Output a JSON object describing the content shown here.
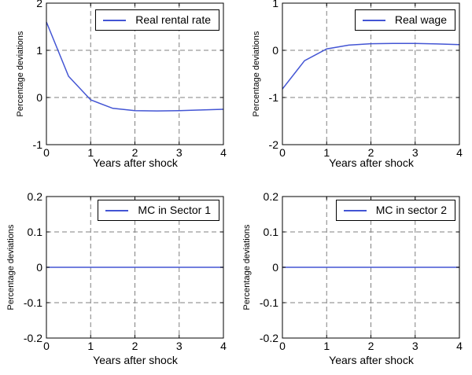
{
  "figure": {
    "background": "#ffffff",
    "grid_color": "#808080",
    "axis_color": "#000000"
  },
  "chart_data": [
    {
      "type": "line",
      "legend": "Real rental rate",
      "xlabel": "Years after shock",
      "ylabel": "Percentage deviations",
      "xlim": [
        0,
        4
      ],
      "ylim": [
        -1,
        2
      ],
      "xticks": [
        0,
        1,
        2,
        3,
        4
      ],
      "yticks": [
        -1,
        0,
        1,
        2
      ],
      "grid": true,
      "legend_position": "top-right",
      "line_color": "#4355d4",
      "x": [
        0,
        0.5,
        1,
        1.5,
        2,
        2.5,
        3,
        3.5,
        4
      ],
      "y": [
        1.6,
        0.45,
        -0.05,
        -0.23,
        -0.28,
        -0.285,
        -0.28,
        -0.265,
        -0.25
      ]
    },
    {
      "type": "line",
      "legend": "Real wage",
      "xlabel": "Years after shock",
      "ylabel": "Percentage deviations",
      "xlim": [
        0,
        4
      ],
      "ylim": [
        -2,
        1
      ],
      "xticks": [
        0,
        1,
        2,
        3,
        4
      ],
      "yticks": [
        -2,
        -1,
        0,
        1
      ],
      "grid": true,
      "legend_position": "top-right",
      "line_color": "#4355d4",
      "x": [
        0,
        0.5,
        1,
        1.5,
        2,
        2.5,
        3,
        3.5,
        4
      ],
      "y": [
        -0.82,
        -0.22,
        0.03,
        0.11,
        0.14,
        0.145,
        0.145,
        0.135,
        0.12
      ]
    },
    {
      "type": "line",
      "legend": "MC in Sector 1",
      "xlabel": "Years after shock",
      "ylabel": "Percentage deviations",
      "xlim": [
        0,
        4
      ],
      "ylim": [
        -0.2,
        0.2
      ],
      "xticks": [
        0,
        1,
        2,
        3,
        4
      ],
      "yticks": [
        -0.2,
        -0.1,
        0,
        0.1,
        0.2
      ],
      "grid": true,
      "legend_position": "top-right",
      "line_color": "#4355d4",
      "x": [
        0,
        0.5,
        1,
        1.5,
        2,
        2.5,
        3,
        3.5,
        4
      ],
      "y": [
        0,
        0,
        0,
        0,
        0,
        0,
        0,
        0,
        0
      ]
    },
    {
      "type": "line",
      "legend": "MC in sector 2",
      "xlabel": "Years after shock",
      "ylabel": "Percentage deviations",
      "xlim": [
        0,
        4
      ],
      "ylim": [
        -0.2,
        0.2
      ],
      "xticks": [
        0,
        1,
        2,
        3,
        4
      ],
      "yticks": [
        -0.2,
        -0.1,
        0,
        0.1,
        0.2
      ],
      "grid": true,
      "legend_position": "top-right",
      "line_color": "#4355d4",
      "x": [
        0,
        0.5,
        1,
        1.5,
        2,
        2.5,
        3,
        3.5,
        4
      ],
      "y": [
        0,
        0,
        0,
        0,
        0,
        0,
        0,
        0,
        0
      ]
    }
  ]
}
